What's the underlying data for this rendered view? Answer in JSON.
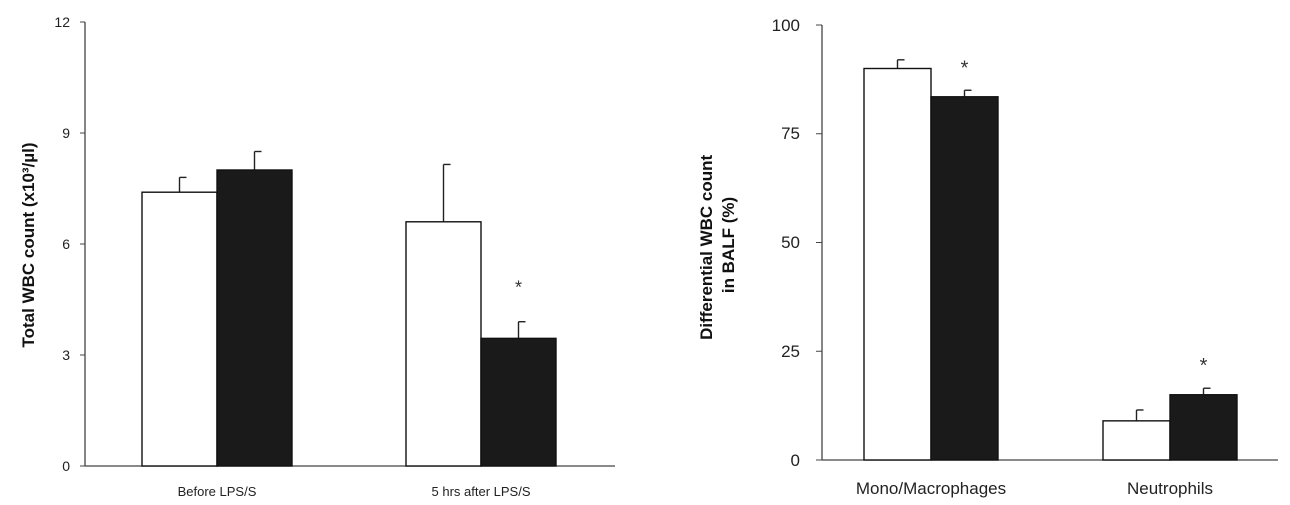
{
  "chart_data": [
    {
      "type": "bar",
      "ylabel": "Total WBC count (x10³/µl)",
      "categories": [
        "Before LPS/S",
        "5 hrs after LPS/S"
      ],
      "yticks": [
        "0",
        "3",
        "6",
        "9",
        "12"
      ],
      "ylim": [
        0,
        12
      ],
      "grid": false,
      "legend": "none",
      "series": [
        {
          "fill": "#ffffff",
          "values": [
            7.4,
            6.6
          ],
          "errors": [
            0.4,
            1.55
          ]
        },
        {
          "fill": "#1a1a1a",
          "values": [
            8.0,
            3.45
          ],
          "errors": [
            0.5,
            0.45
          ]
        }
      ],
      "annotations": [
        {
          "text": "*",
          "category": 1,
          "series": 1
        }
      ]
    },
    {
      "type": "bar",
      "ylabel": "Differential WBC count in BALF  (%)",
      "categories": [
        "Mono/Macrophages",
        "Neutrophils"
      ],
      "yticks": [
        "0",
        "25",
        "50",
        "75",
        "100"
      ],
      "ylim": [
        0,
        100
      ],
      "grid": false,
      "legend": "none",
      "series": [
        {
          "fill": "#ffffff",
          "values": [
            90,
            9
          ],
          "errors": [
            2,
            2.5
          ]
        },
        {
          "fill": "#1a1a1a",
          "values": [
            83.5,
            15
          ],
          "errors": [
            1.5,
            1.5
          ]
        }
      ],
      "annotations": [
        {
          "text": "*",
          "category": 0,
          "series": 1
        },
        {
          "text": "*",
          "category": 1,
          "series": 1
        }
      ]
    }
  ]
}
